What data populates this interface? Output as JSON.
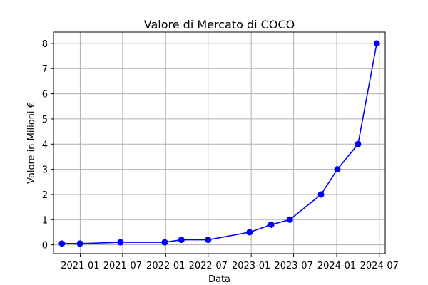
{
  "chart_data": {
    "type": "line",
    "title": "Valore di Mercato di COCO",
    "xlabel": "Data",
    "ylabel": "Valore in Milioni €",
    "x_ticks": [
      "2021-01",
      "2021-07",
      "2022-01",
      "2022-07",
      "2023-01",
      "2023-07",
      "2024-01",
      "2024-07"
    ],
    "y_ticks": [
      0,
      1,
      2,
      3,
      4,
      5,
      6,
      7,
      8
    ],
    "xlim": [
      "2020-09-09",
      "2024-07-26"
    ],
    "ylim": [
      -0.35,
      8.45
    ],
    "grid": true,
    "series": [
      {
        "name": "",
        "color": "#0000ff",
        "marker": "circle",
        "x": [
          "2020-10-15",
          "2020-12-31",
          "2021-06-22",
          "2021-12-28",
          "2022-03-09",
          "2022-07-01",
          "2022-12-25",
          "2023-03-27",
          "2023-06-15",
          "2023-10-26",
          "2024-01-04",
          "2024-04-01",
          "2024-06-20"
        ],
        "y": [
          0.05,
          0.05,
          0.1,
          0.1,
          0.2,
          0.2,
          0.5,
          0.8,
          1.0,
          2.0,
          3.0,
          4.0,
          8.0
        ]
      }
    ]
  }
}
